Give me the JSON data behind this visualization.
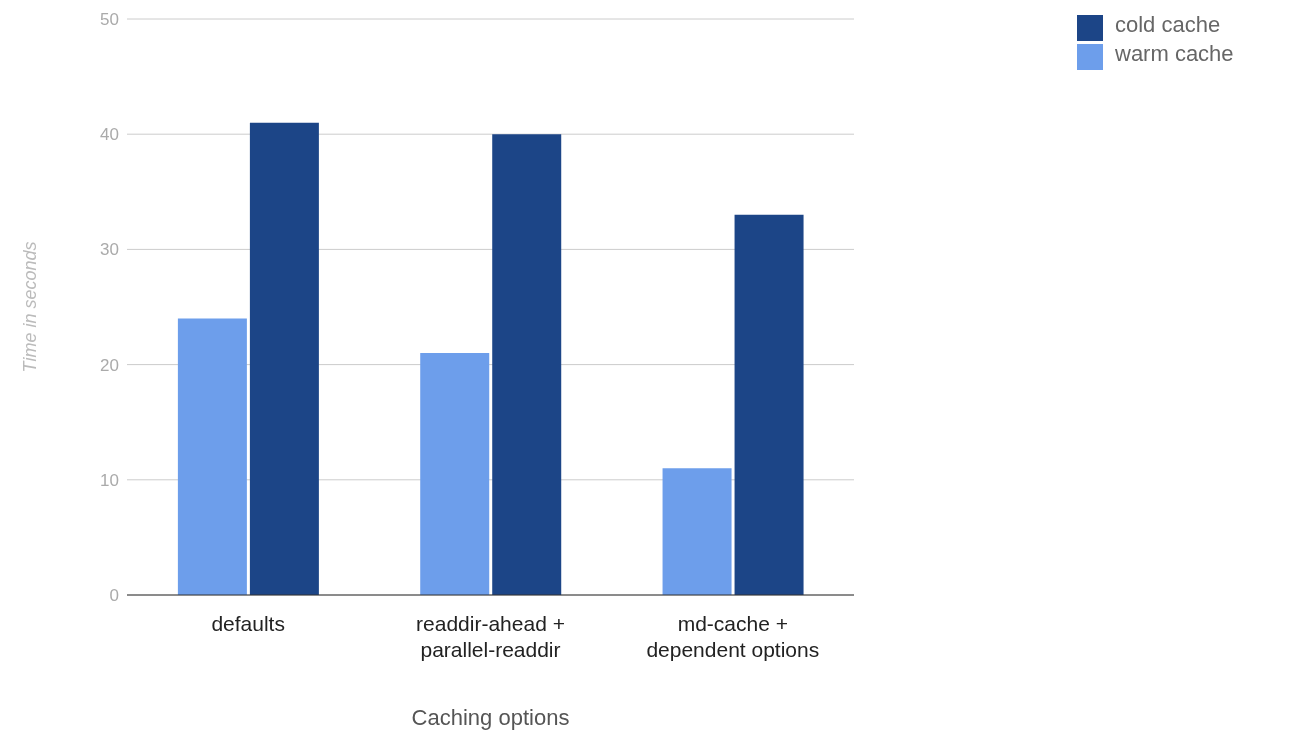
{
  "chart_data": {
    "type": "bar",
    "xlabel": "Caching options",
    "ylabel": "Time in seconds",
    "categories": [
      "defaults",
      "readdir-ahead + parallel-readdir",
      "md-cache + dependent options"
    ],
    "series": [
      {
        "name": "warm cache",
        "color": "#6d9eeb",
        "values": [
          24,
          21,
          11
        ]
      },
      {
        "name": "cold cache",
        "color": "#1c4587",
        "values": [
          41,
          40,
          33
        ]
      }
    ],
    "ylim": [
      0,
      50
    ],
    "yticks": [
      0,
      10,
      20,
      30,
      40,
      50
    ],
    "grid": "y",
    "legend": "top right"
  }
}
